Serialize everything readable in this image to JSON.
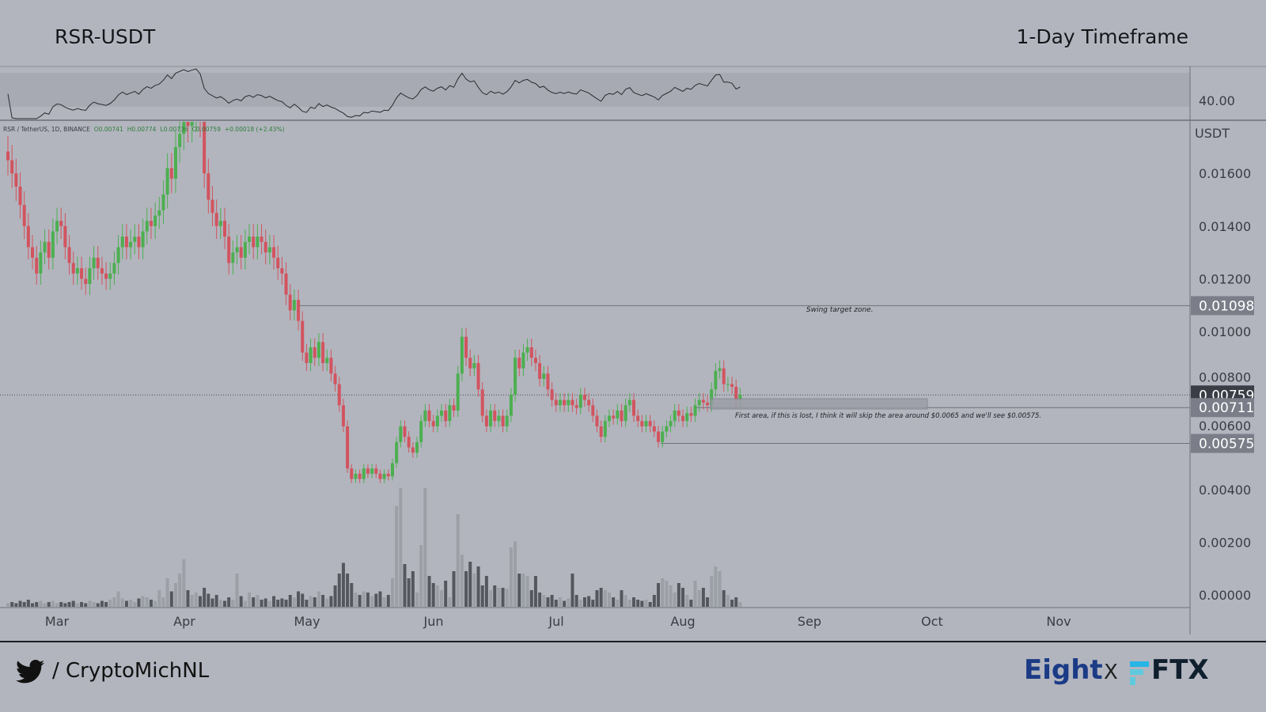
{
  "header": {
    "pair": "RSR-USDT",
    "timeframe": "1-Day Timeframe"
  },
  "legend": {
    "symbol": "RSR / TetherUS, 1D, BINANCE",
    "open": "O0.00741",
    "high": "H0.00774",
    "low": "L0.00736",
    "close": "C0.00759",
    "change": "+0.00018 (+2.43%)"
  },
  "footer": {
    "handle": "/ CryptoMichNL",
    "brand_left": "Eight",
    "separator": "X",
    "brand_right": "FTX"
  },
  "colors": {
    "up": "#4caf50",
    "down": "#d2545f",
    "background": "#b2b5be",
    "brand_eight": "#1b3b86",
    "brand_ftx_accent": "#27b5e6"
  },
  "icons": {
    "social": "twitter-bird-icon",
    "exchange": "ftx-logo-icon"
  },
  "chart_data": {
    "type": "candlestick",
    "unit_label": "USDT",
    "start_date": "2021-02-17",
    "ylim": [
      0,
      0.0175
    ],
    "y_ticks": [
      "0.01600",
      "0.01400",
      "0.01200",
      "0.01000",
      "0.00800",
      "0.00600",
      "0.00400",
      "0.00200",
      "0.00000"
    ],
    "x_ticks": [
      "Mar",
      "Apr",
      "May",
      "Jun",
      "Jul",
      "Aug",
      "Sep",
      "Oct",
      "Nov"
    ],
    "rsi_label": "40.00",
    "closes": [
      0.0165,
      0.016,
      0.0155,
      0.0148,
      0.014,
      0.0132,
      0.0128,
      0.0122,
      0.013,
      0.0134,
      0.0128,
      0.0138,
      0.0142,
      0.014,
      0.0132,
      0.0126,
      0.0122,
      0.0124,
      0.012,
      0.0118,
      0.0124,
      0.0128,
      0.0124,
      0.0122,
      0.012,
      0.0122,
      0.0126,
      0.0132,
      0.0136,
      0.0132,
      0.0134,
      0.0136,
      0.0132,
      0.0138,
      0.0142,
      0.014,
      0.0144,
      0.0146,
      0.0152,
      0.0162,
      0.0158,
      0.017,
      0.0175,
      0.018,
      0.0178,
      0.0182,
      0.0185,
      0.018,
      0.016,
      0.015,
      0.0145,
      0.014,
      0.0142,
      0.0136,
      0.0126,
      0.013,
      0.0132,
      0.0128,
      0.0134,
      0.0136,
      0.0132,
      0.0136,
      0.0134,
      0.013,
      0.0132,
      0.0128,
      0.0124,
      0.0122,
      0.0114,
      0.0108,
      0.0112,
      0.0104,
      0.0092,
      0.0088,
      0.0094,
      0.009,
      0.0096,
      0.0088,
      0.009,
      0.0084,
      0.008,
      0.0072,
      0.0064,
      0.0048,
      0.0044,
      0.0046,
      0.0044,
      0.0048,
      0.0046,
      0.0048,
      0.0046,
      0.0044,
      0.0046,
      0.0045,
      0.005,
      0.0058,
      0.0064,
      0.006,
      0.0056,
      0.0054,
      0.0058,
      0.0066,
      0.007,
      0.0066,
      0.0064,
      0.0068,
      0.007,
      0.0066,
      0.0072,
      0.007,
      0.0084,
      0.0098,
      0.009,
      0.0086,
      0.0088,
      0.0078,
      0.0068,
      0.0064,
      0.007,
      0.0066,
      0.0068,
      0.0064,
      0.0068,
      0.0076,
      0.009,
      0.0086,
      0.0092,
      0.0094,
      0.009,
      0.0088,
      0.0082,
      0.0084,
      0.0078,
      0.0074,
      0.0072,
      0.0074,
      0.0072,
      0.0074,
      0.0072,
      0.0071,
      0.0076,
      0.0074,
      0.0072,
      0.0068,
      0.0064,
      0.006,
      0.0066,
      0.0068,
      0.0067,
      0.007,
      0.0066,
      0.0072,
      0.0074,
      0.0068,
      0.0066,
      0.0064,
      0.0066,
      0.0064,
      0.0062,
      0.0058,
      0.0062,
      0.0064,
      0.0066,
      0.007,
      0.0068,
      0.0066,
      0.0069,
      0.0068,
      0.0072,
      0.0074,
      0.0073,
      0.0072,
      0.0078,
      0.0085,
      0.0086,
      0.008,
      0.008,
      0.0079,
      0.0074,
      0.0076
    ],
    "volumes": [
      3,
      4,
      3,
      5,
      4,
      6,
      3,
      4,
      5,
      3,
      4,
      5,
      3,
      4,
      3,
      4,
      5,
      3,
      4,
      3,
      5,
      4,
      3,
      5,
      4,
      6,
      8,
      13,
      7,
      5,
      6,
      4,
      7,
      9,
      8,
      6,
      5,
      14,
      8,
      24,
      13,
      20,
      28,
      40,
      14,
      10,
      12,
      9,
      16,
      11,
      7,
      10,
      6,
      5,
      8,
      6,
      28,
      9,
      5,
      12,
      8,
      10,
      6,
      7,
      5,
      9,
      6,
      7,
      6,
      10,
      8,
      13,
      11,
      6,
      9,
      8,
      13,
      10,
      7,
      9,
      18,
      28,
      37,
      28,
      20,
      12,
      10,
      13,
      12,
      9,
      11,
      13,
      8,
      10,
      24,
      85,
      100,
      36,
      24,
      30,
      12,
      52,
      100,
      26,
      20,
      18,
      14,
      22,
      8,
      30,
      78,
      44,
      30,
      38,
      28,
      34,
      18,
      26,
      14,
      18,
      16,
      16,
      15,
      50,
      55,
      28,
      28,
      26,
      14,
      26,
      12,
      10,
      8,
      10,
      6,
      8,
      5,
      7,
      28,
      10,
      6,
      8,
      9,
      6,
      14,
      16,
      14,
      12,
      8,
      6,
      14,
      10,
      6,
      8,
      6,
      5,
      6,
      4,
      10,
      20,
      24,
      22,
      18,
      12,
      20,
      16,
      10,
      6,
      22,
      14,
      16,
      8,
      26,
      34,
      30,
      14,
      10,
      6,
      8,
      4
    ]
  },
  "annotations": {
    "swing_label": "Swing target zone.",
    "first_area_label": "First area, if this is lost, I think it will skip the area around $0.0065 and we'll see $0.00575."
  },
  "price_markers": [
    {
      "label": "0.01098",
      "value": 0.01098,
      "style": "level"
    },
    {
      "label": "0.00759",
      "value": 0.00759,
      "style": "current"
    },
    {
      "label": "0.00711",
      "value": 0.00711,
      "style": "level"
    },
    {
      "label": "0.00575",
      "value": 0.00575,
      "style": "level"
    }
  ]
}
